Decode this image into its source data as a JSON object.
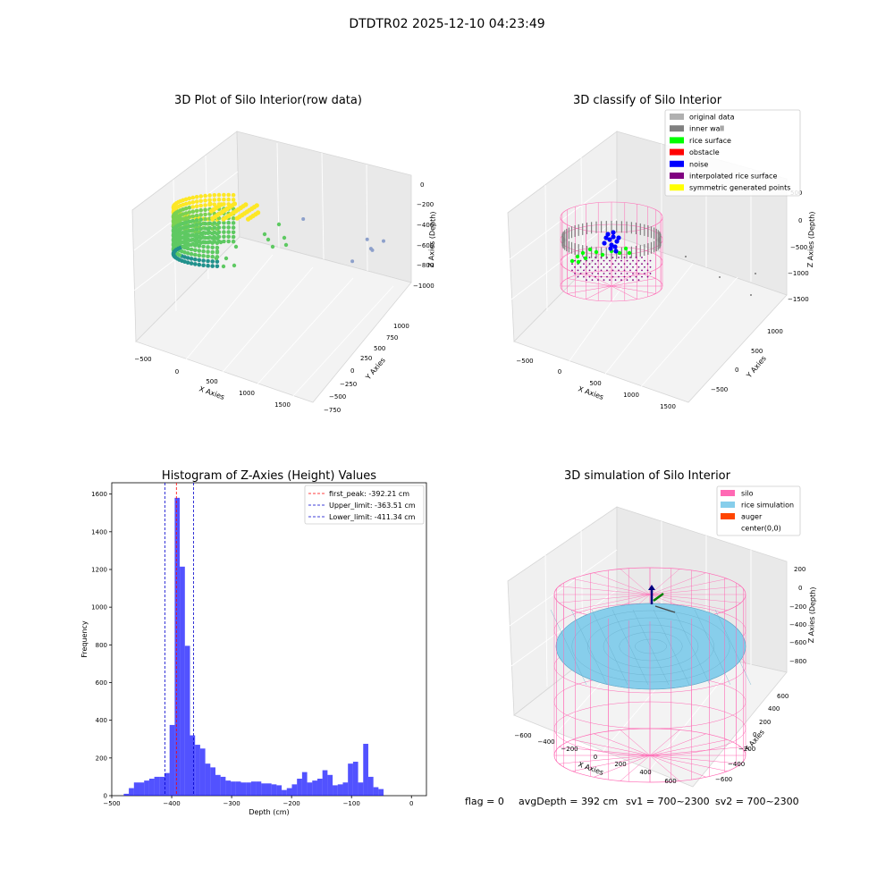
{
  "figure": {
    "suptitle": "DTDTR02 2025-12-10 04:23:49",
    "footer": {
      "flag": "flag = 0",
      "avg": "avgDepth = 392 cm",
      "sv1": "sv1 = 700~2300",
      "sv2": "sv2 = 700~2300"
    }
  },
  "chart_data": [
    {
      "type": "scatter",
      "projection": "3d",
      "title": "3D Plot of Silo Interior(row data)",
      "xlabel": "X Axies",
      "ylabel": "Y Axies",
      "zlabel": "Z Axies (Depth)",
      "x_ticks": [
        "−500",
        "0",
        "500",
        "1000",
        "1500"
      ],
      "y_ticks": [
        "−750",
        "−500",
        "−250",
        "0",
        "250",
        "500",
        "750",
        "1000"
      ],
      "z_ticks": [
        "0",
        "−200",
        "−400",
        "−600",
        "−800",
        "−1000"
      ],
      "colormap": [
        "#440154",
        "#3b528b",
        "#21918c",
        "#5ec962",
        "#fde725"
      ],
      "outliers": [
        {
          "x": 900,
          "y": 300,
          "z": -400
        },
        {
          "x": 1400,
          "y": 500,
          "z": -850
        },
        {
          "x": 1500,
          "y": 700,
          "z": -900
        },
        {
          "x": 1450,
          "y": 400,
          "z": -1000
        },
        {
          "x": 1500,
          "y": 200,
          "z": -1050
        },
        {
          "x": 1350,
          "y": 100,
          "z": -1150
        }
      ]
    },
    {
      "type": "scatter",
      "projection": "3d",
      "title": "3D classify of Silo Interior",
      "xlabel": "X Axies",
      "ylabel": "Y Axies",
      "zlabel": "Z Axies (Depth)",
      "x_ticks": [
        "−500",
        "0",
        "500",
        "1000",
        "1500"
      ],
      "y_ticks": [
        "−500",
        "0",
        "500",
        "1000"
      ],
      "z_ticks": [
        "500",
        "0",
        "−500",
        "−1000",
        "−1500"
      ],
      "legend_position": "top-right",
      "legend": [
        {
          "label": "original data",
          "color": "#b0b0b0"
        },
        {
          "label": "inner wall",
          "color": "#808080"
        },
        {
          "label": "rice surface",
          "color": "#00ff00"
        },
        {
          "label": "obstacle",
          "color": "#ff0000"
        },
        {
          "label": "noise",
          "color": "#0000ff"
        },
        {
          "label": "interpolated rice surface",
          "color": "#800080"
        },
        {
          "label": "symmetric generated points",
          "color": "#ffff00"
        }
      ],
      "silo_color": "#ff69b4"
    },
    {
      "type": "bar",
      "subtype": "histogram",
      "title": "Histogram of Z-Axies (Height) Values",
      "xlabel": "Depth (cm)",
      "ylabel": "Frequency",
      "xlim": [
        -500,
        25
      ],
      "ylim": [
        0,
        1660
      ],
      "x_ticks": [
        -500,
        -400,
        -300,
        -200,
        -100,
        0
      ],
      "y_ticks": [
        0,
        200,
        400,
        600,
        800,
        1000,
        1200,
        1400,
        1600
      ],
      "bar_color": "#0000ff",
      "bin_start": -480,
      "bin_width": 8.5,
      "values": [
        10,
        40,
        70,
        70,
        80,
        90,
        100,
        100,
        120,
        375,
        1580,
        1215,
        795,
        320,
        270,
        250,
        170,
        150,
        110,
        100,
        80,
        75,
        75,
        70,
        70,
        75,
        75,
        65,
        65,
        60,
        55,
        30,
        40,
        60,
        90,
        125,
        70,
        80,
        90,
        135,
        110,
        55,
        60,
        70,
        170,
        180,
        70,
        275,
        100,
        45,
        35
      ],
      "lines": [
        {
          "label": "first_peak: -392.21 cm",
          "x": -392.21,
          "color": "#ff0000"
        },
        {
          "label": "Upper_limit: -363.51 cm",
          "x": -363.51,
          "color": "#0000cd"
        },
        {
          "label": "Lower_limit: -411.34 cm",
          "x": -411.34,
          "color": "#0000cd"
        }
      ],
      "legend_position": "top-right"
    },
    {
      "type": "scatter",
      "projection": "3d",
      "title": "3D simulation of Silo Interior",
      "xlabel": "X Axies",
      "ylabel": "Y Axies",
      "zlabel": "Z Axies (Depth)",
      "x_ticks": [
        "−600",
        "−400",
        "−200",
        "0",
        "200",
        "400",
        "600"
      ],
      "y_ticks": [
        "−600",
        "−400",
        "−200",
        "0",
        "200",
        "400",
        "600"
      ],
      "z_ticks": [
        "200",
        "0",
        "−200",
        "−400",
        "−600",
        "−800"
      ],
      "legend_position": "top-right",
      "legend": [
        {
          "label": "silo",
          "color": "#ff69b4"
        },
        {
          "label": "rice simulation",
          "color": "#87ceeb"
        },
        {
          "label": "auger",
          "color": "#ff4500"
        },
        {
          "label": "center(0,0)",
          "color": "#ffffff"
        }
      ]
    }
  ]
}
